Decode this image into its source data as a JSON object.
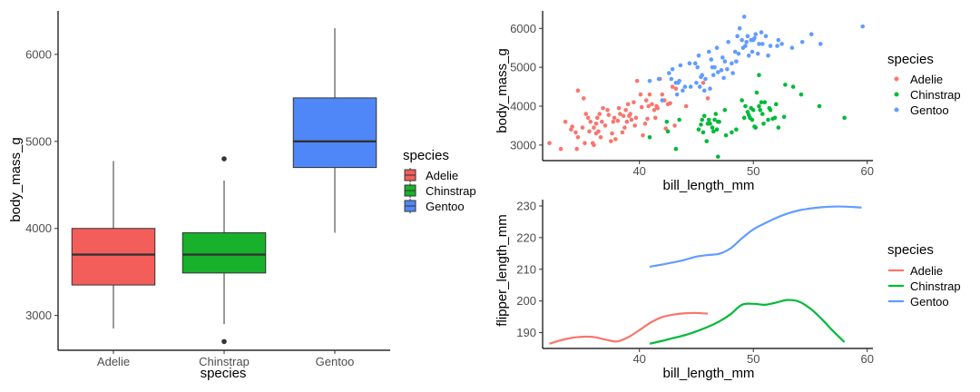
{
  "chart_data": [
    {
      "type": "boxplot",
      "xlabel": "species",
      "ylabel": "body_mass_g",
      "categories": [
        "Adelie",
        "Chinstrap",
        "Gentoo"
      ],
      "yticks": [
        3000,
        4000,
        5000,
        6000
      ],
      "ylim": [
        2600,
        6500
      ],
      "boxes": [
        {
          "name": "Adelie",
          "whisker_low": 2850,
          "q1": 3350,
          "median": 3700,
          "q3": 4000,
          "whisker_high": 4775,
          "outliers": []
        },
        {
          "name": "Chinstrap",
          "whisker_low": 2900,
          "q1": 3488,
          "median": 3700,
          "q3": 3950,
          "whisker_high": 4550,
          "outliers": [
            2700,
            4800
          ]
        },
        {
          "name": "Gentoo",
          "whisker_low": 3950,
          "q1": 4700,
          "median": 5000,
          "q3": 5500,
          "whisker_high": 6300,
          "outliers": []
        }
      ],
      "legend": {
        "title": "species",
        "position": "right",
        "entries": [
          "Adelie",
          "Chinstrap",
          "Gentoo"
        ]
      }
    },
    {
      "type": "scatter",
      "xlabel": "bill_length_mm",
      "ylabel": "body_mass_g",
      "xticks": [
        40,
        50,
        60
      ],
      "yticks": [
        3000,
        4000,
        5000,
        6000
      ],
      "xlim": [
        31.5,
        60.5
      ],
      "ylim": [
        2600,
        6450
      ],
      "grid": false,
      "series": [
        {
          "name": "Adelie",
          "points": [
            [
              32.1,
              3050
            ],
            [
              33.1,
              2900
            ],
            [
              33.5,
              3600
            ],
            [
              34.0,
              3400
            ],
            [
              34.1,
              3475
            ],
            [
              34.4,
              3325
            ],
            [
              34.5,
              2900
            ],
            [
              34.6,
              3200
            ],
            [
              34.6,
              4400
            ],
            [
              35.0,
              3450
            ],
            [
              35.1,
              4200
            ],
            [
              35.2,
              3050
            ],
            [
              35.3,
              3800
            ],
            [
              35.5,
              3700
            ],
            [
              35.6,
              3350
            ],
            [
              35.7,
              3600
            ],
            [
              35.9,
              3050
            ],
            [
              36.0,
              3450
            ],
            [
              36.0,
              3000
            ],
            [
              36.2,
              3300
            ],
            [
              36.2,
              3550
            ],
            [
              36.3,
              3700
            ],
            [
              36.4,
              3350
            ],
            [
              36.5,
              3800
            ],
            [
              36.6,
              3200
            ],
            [
              36.7,
              3600
            ],
            [
              36.8,
              3950
            ],
            [
              37.0,
              3500
            ],
            [
              37.2,
              3900
            ],
            [
              37.3,
              3775
            ],
            [
              37.5,
              3100
            ],
            [
              37.6,
              3300
            ],
            [
              37.7,
              3600
            ],
            [
              37.8,
              3700
            ],
            [
              37.9,
              3150
            ],
            [
              38.1,
              3625
            ],
            [
              38.2,
              3950
            ],
            [
              38.3,
              3800
            ],
            [
              38.5,
              3325
            ],
            [
              38.6,
              3750
            ],
            [
              38.7,
              3450
            ],
            [
              38.8,
              3900
            ],
            [
              38.9,
              3600
            ],
            [
              39.0,
              4050
            ],
            [
              39.1,
              3750
            ],
            [
              39.2,
              3800
            ],
            [
              39.3,
              3650
            ],
            [
              39.5,
              4100
            ],
            [
              39.6,
              3500
            ],
            [
              39.7,
              3700
            ],
            [
              39.8,
              4650
            ],
            [
              40.1,
              4300
            ],
            [
              40.2,
              3975
            ],
            [
              40.3,
              3250
            ],
            [
              40.5,
              3550
            ],
            [
              40.6,
              4150
            ],
            [
              40.7,
              3675
            ],
            [
              40.8,
              4000
            ],
            [
              40.9,
              4300
            ],
            [
              41.1,
              4050
            ],
            [
              41.3,
              3900
            ],
            [
              41.4,
              3700
            ],
            [
              41.5,
              4000
            ],
            [
              41.6,
              3950
            ],
            [
              41.8,
              4700
            ],
            [
              42.0,
              4300
            ],
            [
              42.2,
              4150
            ],
            [
              42.3,
              3425
            ],
            [
              42.5,
              4050
            ],
            [
              42.7,
              4075
            ],
            [
              42.9,
              4500
            ],
            [
              43.1,
              3500
            ],
            [
              43.2,
              4450
            ],
            [
              44.1,
              4000
            ],
            [
              45.6,
              4600
            ],
            [
              46.0,
              4200
            ]
          ]
        },
        {
          "name": "Chinstrap",
          "points": [
            [
              40.9,
              3200
            ],
            [
              42.4,
              3600
            ],
            [
              42.5,
              3350
            ],
            [
              43.2,
              2900
            ],
            [
              43.5,
              3650
            ],
            [
              45.2,
              3400
            ],
            [
              45.4,
              3525
            ],
            [
              45.5,
              3650
            ],
            [
              45.6,
              3325
            ],
            [
              45.7,
              3750
            ],
            [
              45.9,
              3100
            ],
            [
              46.0,
              3550
            ],
            [
              46.1,
              3650
            ],
            [
              46.4,
              3450
            ],
            [
              46.5,
              3350
            ],
            [
              46.6,
              3650
            ],
            [
              46.7,
              3800
            ],
            [
              46.8,
              3400
            ],
            [
              46.9,
              3600
            ],
            [
              47.0,
              3600
            ],
            [
              47.5,
              3900
            ],
            [
              47.6,
              3250
            ],
            [
              48.1,
              3325
            ],
            [
              48.5,
              3400
            ],
            [
              49.0,
              4150
            ],
            [
              49.2,
              3700
            ],
            [
              49.3,
              4000
            ],
            [
              49.5,
              3850
            ],
            [
              49.6,
              3775
            ],
            [
              49.7,
              3700
            ],
            [
              49.8,
              3950
            ],
            [
              49.9,
              3650
            ],
            [
              50.0,
              3900
            ],
            [
              50.1,
              3475
            ],
            [
              50.2,
              3450
            ],
            [
              50.3,
              4350
            ],
            [
              50.5,
              4000
            ],
            [
              50.6,
              3900
            ],
            [
              50.7,
              4100
            ],
            [
              50.8,
              3800
            ],
            [
              50.9,
              3550
            ],
            [
              51.0,
              4100
            ],
            [
              51.3,
              3650
            ],
            [
              51.4,
              3950
            ],
            [
              51.5,
              3900
            ],
            [
              51.7,
              3675
            ],
            [
              51.9,
              3700
            ],
            [
              52.0,
              4050
            ],
            [
              52.2,
              3450
            ],
            [
              52.7,
              3725
            ],
            [
              52.8,
              4550
            ],
            [
              53.5,
              4500
            ],
            [
              54.2,
              4300
            ],
            [
              55.8,
              4000
            ],
            [
              58.0,
              3700
            ],
            [
              50.5,
              4800
            ],
            [
              46.9,
              2700
            ],
            [
              46.2,
              3550
            ]
          ]
        },
        {
          "name": "Gentoo",
          "points": [
            [
              40.9,
              4650
            ],
            [
              41.7,
              4700
            ],
            [
              42.0,
              4150
            ],
            [
              42.6,
              4850
            ],
            [
              42.8,
              4700
            ],
            [
              42.9,
              4950
            ],
            [
              43.2,
              4600
            ],
            [
              43.3,
              4300
            ],
            [
              43.4,
              4600
            ],
            [
              43.5,
              4650
            ],
            [
              43.6,
              5050
            ],
            [
              43.8,
              4400
            ],
            [
              44.0,
              4500
            ],
            [
              44.4,
              5100
            ],
            [
              44.5,
              4500
            ],
            [
              44.9,
              5100
            ],
            [
              45.0,
              4600
            ],
            [
              45.1,
              5000
            ],
            [
              45.2,
              5300
            ],
            [
              45.3,
              4500
            ],
            [
              45.4,
              4750
            ],
            [
              45.5,
              4800
            ],
            [
              45.7,
              4400
            ],
            [
              45.8,
              4700
            ],
            [
              46.1,
              5400
            ],
            [
              46.2,
              4450
            ],
            [
              46.3,
              5200
            ],
            [
              46.4,
              5000
            ],
            [
              46.5,
              4800
            ],
            [
              46.6,
              5000
            ],
            [
              46.8,
              5500
            ],
            [
              46.9,
              4875
            ],
            [
              47.2,
              4925
            ],
            [
              47.3,
              5250
            ],
            [
              47.4,
              4725
            ],
            [
              47.5,
              5150
            ],
            [
              47.7,
              4950
            ],
            [
              47.8,
              5650
            ],
            [
              48.1,
              5100
            ],
            [
              48.2,
              4850
            ],
            [
              48.4,
              5400
            ],
            [
              48.5,
              5150
            ],
            [
              48.6,
              5800
            ],
            [
              48.7,
              5350
            ],
            [
              48.8,
              6000
            ],
            [
              49.0,
              5700
            ],
            [
              49.1,
              5500
            ],
            [
              49.2,
              6300
            ],
            [
              49.3,
              5550
            ],
            [
              49.4,
              5650
            ],
            [
              49.5,
              5800
            ],
            [
              49.6,
              5300
            ],
            [
              49.8,
              5700
            ],
            [
              49.9,
              5400
            ],
            [
              50.0,
              5700
            ],
            [
              50.1,
              5750
            ],
            [
              50.2,
              5850
            ],
            [
              50.4,
              5350
            ],
            [
              50.5,
              5600
            ],
            [
              50.7,
              5900
            ],
            [
              50.8,
              5600
            ],
            [
              51.1,
              5800
            ],
            [
              51.3,
              5300
            ],
            [
              51.5,
              5550
            ],
            [
              52.1,
              5550
            ],
            [
              52.2,
              5700
            ],
            [
              52.5,
              5600
            ],
            [
              53.4,
              5500
            ],
            [
              54.3,
              5650
            ],
            [
              55.1,
              5850
            ],
            [
              55.9,
              5600
            ],
            [
              59.6,
              6050
            ]
          ]
        }
      ],
      "legend": {
        "title": "species",
        "position": "right",
        "entries": [
          "Adelie",
          "Chinstrap",
          "Gentoo"
        ]
      }
    },
    {
      "type": "line",
      "xlabel": "bill_length_mm",
      "ylabel": "flipper_length_mm",
      "xticks": [
        40,
        50,
        60
      ],
      "yticks": [
        190,
        200,
        210,
        220,
        230
      ],
      "xlim": [
        31.5,
        60.5
      ],
      "ylim": [
        185,
        232
      ],
      "grid": false,
      "series": [
        {
          "name": "Adelie",
          "x": [
            32.1,
            33,
            34,
            35,
            36,
            37,
            38,
            39,
            40,
            41,
            42,
            43,
            44,
            45,
            46
          ],
          "y": [
            186.5,
            187.5,
            188.3,
            188.7,
            188.6,
            187.8,
            187.2,
            188.5,
            190.8,
            193.2,
            194.9,
            195.7,
            196.1,
            196.2,
            196.0
          ]
        },
        {
          "name": "Chinstrap",
          "x": [
            40.9,
            42,
            43,
            44,
            45,
            46,
            47,
            48,
            49,
            50,
            51,
            52,
            53,
            54,
            55,
            56,
            57,
            58
          ],
          "y": [
            186.5,
            187.4,
            188.3,
            189.2,
            190.4,
            191.8,
            193.5,
            195.8,
            198.8,
            199.1,
            198.8,
            199.5,
            200.3,
            199.8,
            197.6,
            194.3,
            190.5,
            187.0
          ]
        },
        {
          "name": "Gentoo",
          "x": [
            40.9,
            42,
            43,
            44,
            45,
            46,
            47,
            48,
            49,
            50,
            51,
            52,
            53,
            54,
            55,
            56,
            57,
            58,
            59.5
          ],
          "y": [
            210.8,
            211.5,
            212.2,
            213.0,
            214.0,
            214.5,
            214.9,
            216.6,
            219.8,
            222.6,
            224.5,
            226.2,
            227.6,
            228.6,
            229.2,
            229.6,
            229.8,
            229.8,
            229.5
          ]
        }
      ],
      "legend": {
        "title": "species",
        "position": "right",
        "entries": [
          "Adelie",
          "Chinstrap",
          "Gentoo"
        ]
      }
    }
  ],
  "colors": {
    "Adelie": "#f8766d",
    "Chinstrap": "#00ba38",
    "Gentoo": "#619cff",
    "box_Adelie": "#f35e5a",
    "box_Chinstrap": "#17b12b",
    "box_Gentoo": "#5087f8"
  }
}
